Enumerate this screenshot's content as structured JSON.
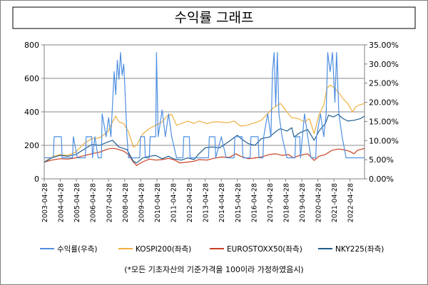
{
  "chart_data": {
    "type": "line",
    "title": "수익률 그래프",
    "note": "(*모든 기초자산의 기준가격을 100이라 가정하였음시)",
    "left_axis": {
      "min": 0,
      "max": 800,
      "ticks": [
        "0",
        "200",
        "400",
        "600",
        "800"
      ]
    },
    "right_axis": {
      "min": 0,
      "max": 35,
      "ticks": [
        "0.00%",
        "5.00%",
        "10.00%",
        "15.00%",
        "20.00%",
        "25.00%",
        "30.00%",
        "35.00%"
      ]
    },
    "x_start": 2003.33,
    "x_end": 2023.35,
    "x_ticks": [
      "2003-04-28",
      "2004-04-28",
      "2005-04-28",
      "2006-04-28",
      "2007-04-28",
      "2008-04-28",
      "2009-04-28",
      "2010-04-28",
      "2011-04-28",
      "2012-04-28",
      "2013-04-28",
      "2014-04-28",
      "2015-04-28",
      "2016-04-28",
      "2017-04-28",
      "2018-04-28",
      "2019-04-28",
      "2020-04-28",
      "2021-04-28",
      "2022-04-28"
    ],
    "grid": true,
    "legend_position": "bottom",
    "series": [
      {
        "name": "수익률(우측)",
        "axis": "right",
        "color": "#4f8fe0",
        "points": [
          [
            2003.33,
            5.5
          ],
          [
            2003.9,
            5.5
          ],
          [
            2003.95,
            11
          ],
          [
            2004.4,
            11
          ],
          [
            2004.45,
            5.5
          ],
          [
            2005.1,
            5.5
          ],
          [
            2005.15,
            11
          ],
          [
            2005.4,
            5.5
          ],
          [
            2005.9,
            5.5
          ],
          [
            2005.95,
            11
          ],
          [
            2006.3,
            11
          ],
          [
            2006.35,
            5.5
          ],
          [
            2006.5,
            11
          ],
          [
            2006.7,
            5.5
          ],
          [
            2006.9,
            5.5
          ],
          [
            2006.95,
            17
          ],
          [
            2007.2,
            11
          ],
          [
            2007.35,
            16
          ],
          [
            2007.5,
            11
          ],
          [
            2007.7,
            28
          ],
          [
            2007.8,
            22
          ],
          [
            2007.9,
            31
          ],
          [
            2008.0,
            26
          ],
          [
            2008.1,
            33
          ],
          [
            2008.2,
            27
          ],
          [
            2008.3,
            30
          ],
          [
            2008.4,
            21
          ],
          [
            2008.5,
            11
          ],
          [
            2008.6,
            5.5
          ],
          [
            2009.3,
            5.5
          ],
          [
            2009.35,
            11
          ],
          [
            2009.6,
            11
          ],
          [
            2009.65,
            5.5
          ],
          [
            2009.9,
            5.5
          ],
          [
            2009.95,
            11
          ],
          [
            2010.3,
            11
          ],
          [
            2010.35,
            33
          ],
          [
            2010.45,
            11
          ],
          [
            2010.7,
            18
          ],
          [
            2010.9,
            11
          ],
          [
            2011.1,
            17
          ],
          [
            2011.3,
            11
          ],
          [
            2011.6,
            5.5
          ],
          [
            2012.0,
            5.5
          ],
          [
            2012.05,
            11
          ],
          [
            2012.4,
            11
          ],
          [
            2012.45,
            5.5
          ],
          [
            2013.6,
            5.5
          ],
          [
            2013.65,
            11
          ],
          [
            2014.0,
            11
          ],
          [
            2014.05,
            5.5
          ],
          [
            2014.4,
            11
          ],
          [
            2014.7,
            5.5
          ],
          [
            2015.2,
            5.5
          ],
          [
            2015.25,
            11
          ],
          [
            2015.7,
            11
          ],
          [
            2015.75,
            5.5
          ],
          [
            2016.2,
            5.5
          ],
          [
            2016.25,
            11
          ],
          [
            2016.7,
            11
          ],
          [
            2016.75,
            5.5
          ],
          [
            2017.0,
            5.5
          ],
          [
            2017.05,
            11
          ],
          [
            2017.3,
            17
          ],
          [
            2017.5,
            11
          ],
          [
            2017.6,
            28
          ],
          [
            2017.7,
            33
          ],
          [
            2017.8,
            19
          ],
          [
            2017.9,
            33
          ],
          [
            2018.0,
            17
          ],
          [
            2018.2,
            11
          ],
          [
            2018.5,
            5.5
          ],
          [
            2019.0,
            5.5
          ],
          [
            2019.05,
            11
          ],
          [
            2019.3,
            11
          ],
          [
            2019.35,
            5.5
          ],
          [
            2019.6,
            17
          ],
          [
            2019.8,
            11
          ],
          [
            2020.0,
            5.5
          ],
          [
            2020.3,
            5.5
          ],
          [
            2020.35,
            11
          ],
          [
            2020.6,
            17
          ],
          [
            2020.8,
            11
          ],
          [
            2020.95,
            17
          ],
          [
            2021.05,
            33
          ],
          [
            2021.2,
            28
          ],
          [
            2021.35,
            33
          ],
          [
            2021.5,
            20
          ],
          [
            2021.6,
            33
          ],
          [
            2021.75,
            17
          ],
          [
            2021.95,
            11
          ],
          [
            2022.2,
            5.5
          ],
          [
            2023.35,
            5.5
          ]
        ]
      },
      {
        "name": "KOSPI200(좌측)",
        "axis": "left",
        "color": "#f0b040",
        "points": [
          [
            2003.33,
            100
          ],
          [
            2003.8,
            130
          ],
          [
            2004.3,
            145
          ],
          [
            2004.8,
            140
          ],
          [
            2005.3,
            160
          ],
          [
            2005.8,
            210
          ],
          [
            2006.3,
            240
          ],
          [
            2006.8,
            245
          ],
          [
            2007.3,
            280
          ],
          [
            2007.6,
            340
          ],
          [
            2007.8,
            375
          ],
          [
            2008.0,
            340
          ],
          [
            2008.3,
            330
          ],
          [
            2008.6,
            280
          ],
          [
            2008.9,
            190
          ],
          [
            2009.1,
            200
          ],
          [
            2009.5,
            270
          ],
          [
            2009.9,
            300
          ],
          [
            2010.3,
            320
          ],
          [
            2010.7,
            340
          ],
          [
            2011.0,
            375
          ],
          [
            2011.3,
            385
          ],
          [
            2011.6,
            320
          ],
          [
            2011.9,
            330
          ],
          [
            2012.3,
            345
          ],
          [
            2012.7,
            330
          ],
          [
            2013.0,
            345
          ],
          [
            2013.5,
            330
          ],
          [
            2013.9,
            340
          ],
          [
            2014.3,
            340
          ],
          [
            2014.8,
            335
          ],
          [
            2015.2,
            345
          ],
          [
            2015.6,
            315
          ],
          [
            2016.0,
            320
          ],
          [
            2016.5,
            335
          ],
          [
            2016.9,
            350
          ],
          [
            2017.3,
            390
          ],
          [
            2017.6,
            420
          ],
          [
            2017.9,
            440
          ],
          [
            2018.1,
            450
          ],
          [
            2018.5,
            400
          ],
          [
            2018.8,
            365
          ],
          [
            2019.2,
            360
          ],
          [
            2019.6,
            340
          ],
          [
            2019.9,
            360
          ],
          [
            2020.2,
            270
          ],
          [
            2020.5,
            380
          ],
          [
            2020.8,
            440
          ],
          [
            2021.0,
            540
          ],
          [
            2021.2,
            560
          ],
          [
            2021.45,
            545
          ],
          [
            2021.7,
            520
          ],
          [
            2022.0,
            480
          ],
          [
            2022.3,
            450
          ],
          [
            2022.6,
            400
          ],
          [
            2022.8,
            430
          ],
          [
            2023.0,
            440
          ],
          [
            2023.35,
            450
          ]
        ]
      },
      {
        "name": "EUROSTOXX50(좌측)",
        "axis": "left",
        "color": "#c84020",
        "points": [
          [
            2003.33,
            100
          ],
          [
            2003.8,
            112
          ],
          [
            2004.3,
            120
          ],
          [
            2004.8,
            118
          ],
          [
            2005.3,
            125
          ],
          [
            2005.8,
            138
          ],
          [
            2006.3,
            150
          ],
          [
            2006.8,
            160
          ],
          [
            2007.3,
            178
          ],
          [
            2007.6,
            182
          ],
          [
            2007.9,
            178
          ],
          [
            2008.3,
            165
          ],
          [
            2008.6,
            145
          ],
          [
            2008.9,
            100
          ],
          [
            2009.1,
            80
          ],
          [
            2009.5,
            102
          ],
          [
            2009.9,
            118
          ],
          [
            2010.3,
            112
          ],
          [
            2010.7,
            115
          ],
          [
            2011.1,
            122
          ],
          [
            2011.5,
            112
          ],
          [
            2011.8,
            95
          ],
          [
            2012.3,
            100
          ],
          [
            2012.7,
            105
          ],
          [
            2013.0,
            115
          ],
          [
            2013.5,
            112
          ],
          [
            2013.9,
            122
          ],
          [
            2014.4,
            130
          ],
          [
            2014.9,
            128
          ],
          [
            2015.3,
            150
          ],
          [
            2015.6,
            135
          ],
          [
            2016.1,
            120
          ],
          [
            2016.5,
            125
          ],
          [
            2016.9,
            130
          ],
          [
            2017.4,
            145
          ],
          [
            2017.8,
            150
          ],
          [
            2018.2,
            140
          ],
          [
            2018.6,
            145
          ],
          [
            2018.9,
            125
          ],
          [
            2019.3,
            140
          ],
          [
            2019.8,
            150
          ],
          [
            2020.2,
            110
          ],
          [
            2020.5,
            135
          ],
          [
            2020.9,
            145
          ],
          [
            2021.3,
            170
          ],
          [
            2021.7,
            178
          ],
          [
            2022.0,
            175
          ],
          [
            2022.4,
            165
          ],
          [
            2022.7,
            150
          ],
          [
            2022.9,
            170
          ],
          [
            2023.2,
            178
          ],
          [
            2023.35,
            182
          ]
        ]
      },
      {
        "name": "NKY225(좌측)",
        "axis": "left",
        "color": "#1f5d8c",
        "points": [
          [
            2003.33,
            100
          ],
          [
            2003.8,
            125
          ],
          [
            2004.3,
            140
          ],
          [
            2004.8,
            135
          ],
          [
            2005.3,
            145
          ],
          [
            2005.8,
            175
          ],
          [
            2006.3,
            205
          ],
          [
            2006.8,
            200
          ],
          [
            2007.3,
            220
          ],
          [
            2007.6,
            230
          ],
          [
            2008.0,
            190
          ],
          [
            2008.5,
            175
          ],
          [
            2008.9,
            105
          ],
          [
            2009.1,
            95
          ],
          [
            2009.5,
            125
          ],
          [
            2009.9,
            135
          ],
          [
            2010.3,
            140
          ],
          [
            2010.7,
            120
          ],
          [
            2011.1,
            135
          ],
          [
            2011.4,
            120
          ],
          [
            2011.9,
            112
          ],
          [
            2012.3,
            125
          ],
          [
            2012.7,
            115
          ],
          [
            2013.0,
            150
          ],
          [
            2013.4,
            185
          ],
          [
            2013.8,
            190
          ],
          [
            2014.3,
            185
          ],
          [
            2014.9,
            225
          ],
          [
            2015.4,
            260
          ],
          [
            2015.7,
            235
          ],
          [
            2016.1,
            210
          ],
          [
            2016.5,
            200
          ],
          [
            2016.9,
            240
          ],
          [
            2017.4,
            250
          ],
          [
            2017.9,
            290
          ],
          [
            2018.1,
            300
          ],
          [
            2018.5,
            285
          ],
          [
            2018.8,
            305
          ],
          [
            2018.95,
            250
          ],
          [
            2019.3,
            275
          ],
          [
            2019.8,
            295
          ],
          [
            2020.2,
            230
          ],
          [
            2020.5,
            285
          ],
          [
            2020.9,
            330
          ],
          [
            2021.1,
            380
          ],
          [
            2021.4,
            370
          ],
          [
            2021.7,
            385
          ],
          [
            2022.0,
            360
          ],
          [
            2022.3,
            345
          ],
          [
            2022.7,
            350
          ],
          [
            2022.9,
            355
          ],
          [
            2023.1,
            360
          ],
          [
            2023.35,
            375
          ]
        ]
      }
    ]
  }
}
